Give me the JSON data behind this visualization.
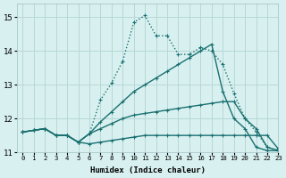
{
  "xlabel": "Humidex (Indice chaleur)",
  "background_color": "#d8f0f0",
  "grid_color": "#b8d8d8",
  "line_color": "#1a7070",
  "xlim": [
    -0.5,
    23
  ],
  "ylim": [
    11.0,
    15.4
  ],
  "yticks": [
    11,
    12,
    13,
    14,
    15
  ],
  "xticks": [
    0,
    1,
    2,
    3,
    4,
    5,
    6,
    7,
    8,
    9,
    10,
    11,
    12,
    13,
    14,
    15,
    16,
    17,
    18,
    19,
    20,
    21,
    22,
    23
  ],
  "series": [
    {
      "x": [
        0,
        1,
        2,
        3,
        4,
        5,
        6,
        7,
        8,
        9,
        10,
        11,
        12,
        13,
        14,
        15,
        16,
        17,
        18,
        19,
        20,
        21,
        22,
        23
      ],
      "y": [
        11.6,
        11.65,
        11.7,
        11.5,
        11.5,
        11.3,
        11.25,
        11.3,
        11.35,
        11.4,
        11.45,
        11.5,
        11.5,
        11.5,
        11.5,
        11.5,
        11.5,
        11.5,
        11.5,
        11.5,
        11.5,
        11.5,
        11.5,
        11.1
      ],
      "marker": true,
      "dotted": false,
      "linewidth": 1.0
    },
    {
      "x": [
        0,
        1,
        2,
        3,
        4,
        5,
        6,
        7,
        8,
        9,
        10,
        11,
        12,
        13,
        14,
        15,
        16,
        17,
        18,
        19,
        20,
        21,
        22,
        23
      ],
      "y": [
        11.6,
        11.65,
        11.7,
        11.5,
        11.5,
        11.3,
        11.55,
        11.7,
        11.85,
        12.0,
        12.1,
        12.15,
        12.2,
        12.25,
        12.3,
        12.35,
        12.4,
        12.45,
        12.5,
        12.5,
        12.0,
        11.7,
        11.15,
        11.05
      ],
      "marker": true,
      "dotted": false,
      "linewidth": 1.0
    },
    {
      "x": [
        0,
        1,
        2,
        3,
        4,
        5,
        6,
        7,
        8,
        9,
        10,
        11,
        12,
        13,
        14,
        15,
        16,
        17,
        18,
        19,
        20,
        21,
        22,
        23
      ],
      "y": [
        11.6,
        11.65,
        11.7,
        11.5,
        11.5,
        11.3,
        11.55,
        11.9,
        12.2,
        12.5,
        12.8,
        13.0,
        13.2,
        13.4,
        13.6,
        13.8,
        14.0,
        14.2,
        12.8,
        12.0,
        11.7,
        11.15,
        11.05,
        11.05
      ],
      "marker": true,
      "dotted": false,
      "linewidth": 1.0
    },
    {
      "x": [
        0,
        1,
        2,
        3,
        4,
        5,
        6,
        7,
        8,
        9,
        10,
        11,
        12,
        13,
        14,
        15,
        16,
        17,
        18,
        19,
        20,
        21,
        22,
        23
      ],
      "y": [
        11.6,
        11.65,
        11.7,
        11.5,
        11.5,
        11.3,
        11.55,
        12.55,
        13.05,
        13.7,
        14.85,
        15.05,
        14.45,
        14.45,
        13.9,
        13.9,
        14.1,
        14.0,
        13.6,
        12.75,
        12.0,
        11.6,
        11.15,
        11.05
      ],
      "marker": true,
      "dotted": true,
      "linewidth": 1.0
    }
  ]
}
